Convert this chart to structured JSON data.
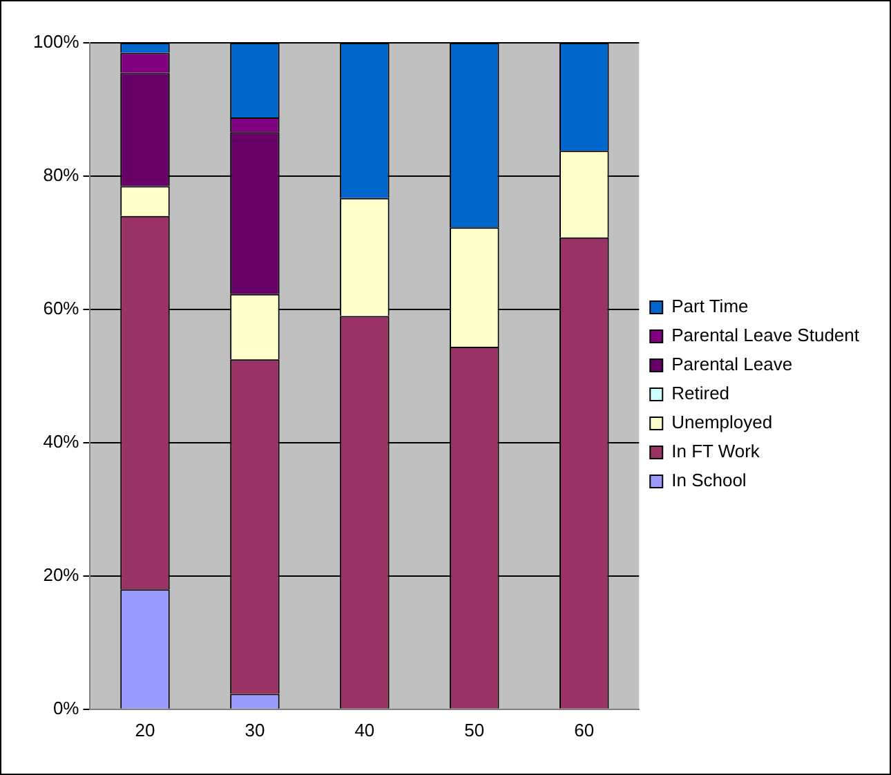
{
  "chart_data": {
    "type": "bar",
    "stacked": true,
    "categories": [
      "20",
      "30",
      "40",
      "50",
      "60"
    ],
    "series": [
      {
        "name": "In School",
        "color": "#9999ff",
        "values": [
          18,
          2.3,
          0,
          0,
          0
        ]
      },
      {
        "name": "In FT Work",
        "color": "#993366",
        "values": [
          56,
          50.2,
          59,
          54.4,
          70.8
        ]
      },
      {
        "name": "Unemployed",
        "color": "#ffffcc",
        "values": [
          4.5,
          9.8,
          17.7,
          17.9,
          13
        ]
      },
      {
        "name": "Retired",
        "color": "#ccffff",
        "values": [
          0,
          0,
          0,
          0,
          0
        ]
      },
      {
        "name": "Parental Leave",
        "color": "#660066",
        "values": [
          17,
          24.3,
          0,
          0,
          0
        ]
      },
      {
        "name": "Parental Leave Student",
        "color": "#800080",
        "values": [
          3,
          2.2,
          0,
          0,
          0
        ]
      },
      {
        "name": "Part Time",
        "color": "#0066cc",
        "values": [
          1.5,
          11.2,
          23.3,
          27.7,
          16.2
        ]
      }
    ],
    "ylim": [
      0,
      100
    ],
    "yticks": [
      {
        "value": 0,
        "label": "0%"
      },
      {
        "value": 20,
        "label": "20%"
      },
      {
        "value": 40,
        "label": "40%"
      },
      {
        "value": 60,
        "label": "60%"
      },
      {
        "value": 80,
        "label": "80%"
      },
      {
        "value": 100,
        "label": "100%"
      }
    ],
    "grid": "y",
    "legend": "right"
  }
}
